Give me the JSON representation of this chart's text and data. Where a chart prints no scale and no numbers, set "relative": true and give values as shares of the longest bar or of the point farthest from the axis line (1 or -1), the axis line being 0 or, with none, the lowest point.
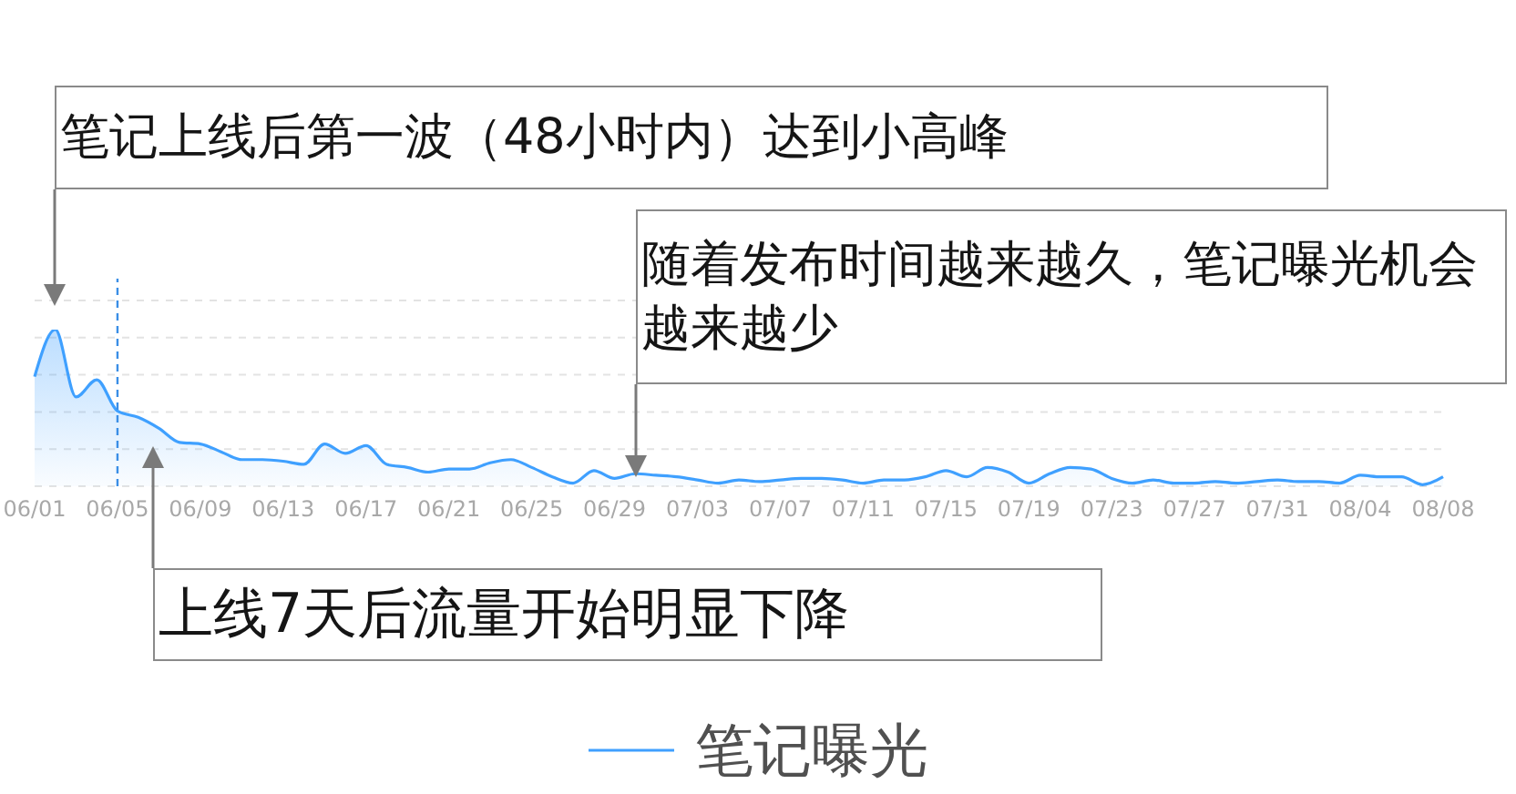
{
  "chart_data": {
    "type": "area",
    "relative": true,
    "categories": [
      "06/01",
      null,
      null,
      null,
      "06/05",
      null,
      null,
      null,
      "06/09",
      null,
      null,
      null,
      "06/13",
      null,
      null,
      null,
      "06/17",
      null,
      null,
      null,
      "06/21",
      null,
      null,
      null,
      "06/25",
      null,
      null,
      null,
      "06/29",
      null,
      null,
      null,
      "07/03",
      null,
      null,
      null,
      "07/07",
      null,
      null,
      null,
      "07/11",
      null,
      null,
      null,
      "07/15",
      null,
      null,
      null,
      "07/19",
      null,
      null,
      null,
      "07/23",
      null,
      null,
      null,
      "07/27",
      null,
      null,
      null,
      "07/31",
      null,
      null,
      null,
      "08/04",
      null,
      null,
      null,
      "08/08"
    ],
    "series": [
      {
        "name": "笔记曝光",
        "color": "#3fa0ff",
        "values": [
          0.7,
          1.0,
          0.57,
          0.68,
          0.48,
          0.44,
          0.37,
          0.28,
          0.27,
          0.22,
          0.17,
          0.17,
          0.16,
          0.14,
          0.27,
          0.21,
          0.26,
          0.14,
          0.12,
          0.09,
          0.11,
          0.11,
          0.15,
          0.17,
          0.12,
          0.06,
          0.02,
          0.1,
          0.05,
          0.08,
          0.07,
          0.06,
          0.04,
          0.02,
          0.04,
          0.03,
          0.04,
          0.05,
          0.05,
          0.04,
          0.02,
          0.04,
          0.04,
          0.06,
          0.1,
          0.06,
          0.12,
          0.09,
          0.02,
          0.08,
          0.12,
          0.11,
          0.05,
          0.02,
          0.04,
          0.02,
          0.02,
          0.03,
          0.02,
          0.03,
          0.04,
          0.03,
          0.03,
          0.02,
          0.07,
          0.06,
          0.06,
          0.01,
          0.06
        ]
      }
    ],
    "ref_lines": [
      {
        "axis": "x",
        "value": "06/05",
        "color": "#3a8ee6",
        "line_style": "dashed"
      }
    ],
    "annotations": [
      "笔记上线后第一波（48小时内）达到小高峰",
      "随着发布时间越来越久，笔记曝光机会越来越少",
      "上线7天后流量开始明显下降"
    ],
    "grid": "y",
    "legend": "bottom"
  }
}
